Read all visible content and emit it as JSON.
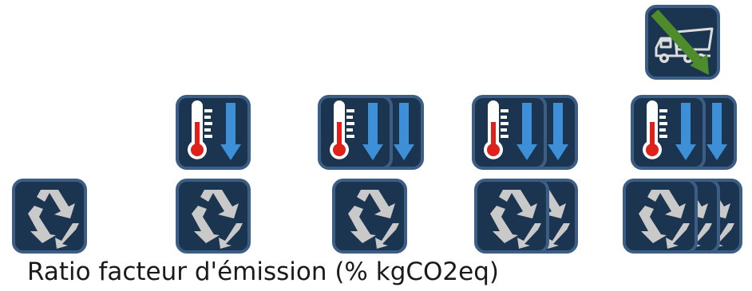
{
  "caption": "Ratio facteur d'émission (% kgCO2eq)",
  "icons": {
    "recycle": "recycle-icon",
    "thermometer": "thermometer-down-icon",
    "truck": "dump-truck-icon"
  },
  "colors": {
    "tile_background": "#1b3450",
    "tile_border": "#3c5d84",
    "recycle_symbol": "#c9c9c9",
    "thermometer_red": "#e0201b",
    "down_arrow": "#3d8fd8",
    "truck_outline": "#dcdcdc",
    "truck_arrow": "#4e8b2a"
  },
  "columns": [
    {
      "level": 1,
      "recycle_tiles": 1,
      "thermometer_tiles": 0,
      "truck_tiles": 0
    },
    {
      "level": 2,
      "recycle_tiles": 1,
      "thermometer_tiles": 1,
      "truck_tiles": 0
    },
    {
      "level": 3,
      "recycle_tiles": 1,
      "thermometer_tiles": 2,
      "truck_tiles": 0
    },
    {
      "level": 4,
      "recycle_tiles": 2,
      "thermometer_tiles": 2,
      "truck_tiles": 0
    },
    {
      "level": 5,
      "recycle_tiles": 3,
      "thermometer_tiles": 2,
      "truck_tiles": 1
    }
  ]
}
